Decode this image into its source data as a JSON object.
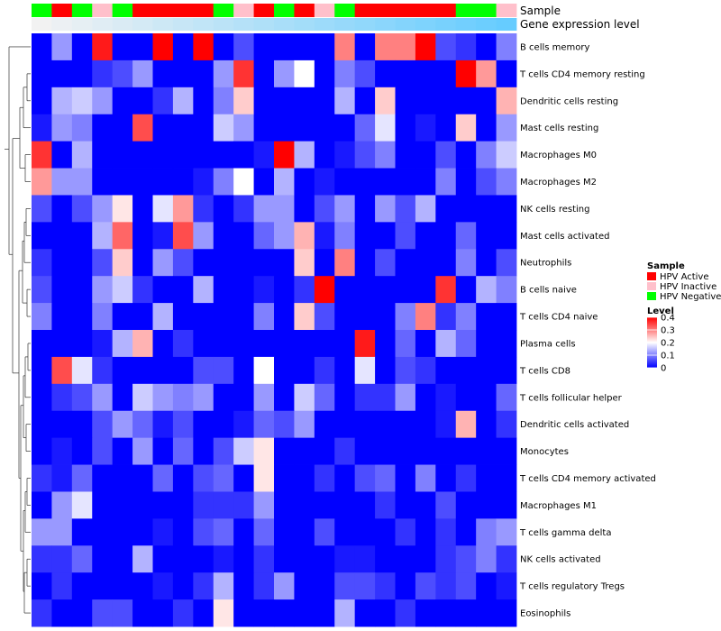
{
  "chart_data": {
    "type": "heatmap",
    "title": "",
    "annotation_labels": {
      "sample": "Sample",
      "gene_expression": "Gene expression level"
    },
    "sample_annotation": [
      "HPV Negative",
      "HPV Active",
      "HPV Negative",
      "HPV Inactive",
      "HPV Negative",
      "HPV Active",
      "HPV Active",
      "HPV Active",
      "HPV Active",
      "HPV Negative",
      "HPV Inactive",
      "HPV Active",
      "HPV Negative",
      "HPV Active",
      "HPV Inactive",
      "HPV Negative",
      "HPV Active",
      "HPV Active",
      "HPV Active",
      "HPV Active",
      "HPV Active",
      "HPV Negative",
      "HPV Negative",
      "HPV Inactive"
    ],
    "gene_expression_level": [
      0.02,
      0.04,
      0.06,
      0.08,
      0.1,
      0.12,
      0.14,
      0.16,
      0.18,
      0.2,
      0.22,
      0.24,
      0.26,
      0.28,
      0.3,
      0.32,
      0.34,
      0.36,
      0.38,
      0.4,
      0.42,
      0.44,
      0.46,
      0.48
    ],
    "rows": [
      "B cells memory",
      "T cells CD4 memory resting",
      "Dendritic cells resting",
      "Mast cells resting",
      "Macrophages M0",
      "Macrophages M2",
      "NK cells resting",
      "Mast cells activated",
      "Neutrophils",
      "B cells naive",
      "T cells CD4 naive",
      "Plasma cells",
      "T cells CD8",
      "T cells follicular helper",
      "Dendritic cells activated",
      "Monocytes",
      "T cells CD4 memory activated",
      "Macrophages M1",
      "T cells gamma delta",
      "NK cells activated",
      "T cells regulatory  Tregs",
      "Eosinophils"
    ],
    "values": [
      [
        0.0,
        0.12,
        0.0,
        0.38,
        0.0,
        0.0,
        0.4,
        0.0,
        0.4,
        0.0,
        0.06,
        0.0,
        0.0,
        0.0,
        0.0,
        0.3,
        0.0,
        0.3,
        0.3,
        0.4,
        0.06,
        0.04,
        0.0,
        0.1
      ],
      [
        0.0,
        0.0,
        0.0,
        0.04,
        0.06,
        0.12,
        0.0,
        0.0,
        0.0,
        0.12,
        0.36,
        0.0,
        0.12,
        0.2,
        0.0,
        0.1,
        0.06,
        0.0,
        0.0,
        0.0,
        0.0,
        0.4,
        0.28,
        0.0
      ],
      [
        0.0,
        0.14,
        0.16,
        0.12,
        0.0,
        0.0,
        0.04,
        0.14,
        0.0,
        0.1,
        0.24,
        0.0,
        0.0,
        0.0,
        0.0,
        0.14,
        0.0,
        0.24,
        0.0,
        0.0,
        0.0,
        0.0,
        0.0,
        0.26
      ],
      [
        0.02,
        0.12,
        0.1,
        0.0,
        0.0,
        0.34,
        0.0,
        0.0,
        0.0,
        0.16,
        0.12,
        0.0,
        0.0,
        0.0,
        0.0,
        0.0,
        0.08,
        0.18,
        0.0,
        0.02,
        0.0,
        0.24,
        0.0,
        0.12
      ],
      [
        0.36,
        0.0,
        0.14,
        0.0,
        0.0,
        0.0,
        0.0,
        0.0,
        0.0,
        0.0,
        0.0,
        0.02,
        0.4,
        0.14,
        0.0,
        0.02,
        0.06,
        0.1,
        0.0,
        0.0,
        0.06,
        0.0,
        0.1,
        0.16
      ],
      [
        0.28,
        0.12,
        0.12,
        0.0,
        0.0,
        0.0,
        0.0,
        0.0,
        0.02,
        0.1,
        0.2,
        0.0,
        0.14,
        0.0,
        0.02,
        0.0,
        0.0,
        0.0,
        0.0,
        0.0,
        0.1,
        0.0,
        0.06,
        0.1
      ],
      [
        0.06,
        0.0,
        0.06,
        0.12,
        0.22,
        0.0,
        0.18,
        0.28,
        0.04,
        0.0,
        0.04,
        0.12,
        0.12,
        0.0,
        0.06,
        0.12,
        0.0,
        0.12,
        0.06,
        0.14,
        0.0,
        0.0,
        0.0,
        0.0
      ],
      [
        0.0,
        0.0,
        0.0,
        0.14,
        0.32,
        0.0,
        0.02,
        0.34,
        0.12,
        0.0,
        0.0,
        0.08,
        0.12,
        0.26,
        0.02,
        0.1,
        0.0,
        0.0,
        0.06,
        0.0,
        0.0,
        0.08,
        0.0,
        0.0
      ],
      [
        0.04,
        0.0,
        0.0,
        0.06,
        0.24,
        0.0,
        0.12,
        0.06,
        0.0,
        0.0,
        0.0,
        0.0,
        0.0,
        0.24,
        0.0,
        0.3,
        0.0,
        0.06,
        0.0,
        0.0,
        0.0,
        0.1,
        0.0,
        0.06
      ],
      [
        0.06,
        0.0,
        0.0,
        0.12,
        0.16,
        0.04,
        0.0,
        0.0,
        0.14,
        0.0,
        0.0,
        0.02,
        0.0,
        0.04,
        0.4,
        0.0,
        0.0,
        0.0,
        0.0,
        0.0,
        0.36,
        0.0,
        0.14,
        0.1
      ],
      [
        0.1,
        0.0,
        0.0,
        0.1,
        0.0,
        0.0,
        0.14,
        0.0,
        0.0,
        0.0,
        0.0,
        0.1,
        0.0,
        0.24,
        0.06,
        0.0,
        0.0,
        0.0,
        0.1,
        0.3,
        0.04,
        0.1,
        0.0,
        0.0
      ],
      [
        0.0,
        0.0,
        0.0,
        0.02,
        0.14,
        0.26,
        0.0,
        0.04,
        0.0,
        0.0,
        0.0,
        0.0,
        0.0,
        0.0,
        0.0,
        0.0,
        0.38,
        0.0,
        0.08,
        0.0,
        0.14,
        0.08,
        0.0,
        0.0
      ],
      [
        0.0,
        0.34,
        0.18,
        0.04,
        0.0,
        0.0,
        0.0,
        0.0,
        0.06,
        0.06,
        0.0,
        0.2,
        0.0,
        0.0,
        0.04,
        0.0,
        0.18,
        0.0,
        0.06,
        0.04,
        0.0,
        0.0,
        0.0,
        0.0
      ],
      [
        0.0,
        0.04,
        0.06,
        0.12,
        0.0,
        0.16,
        0.12,
        0.1,
        0.12,
        0.0,
        0.0,
        0.12,
        0.0,
        0.16,
        0.08,
        0.0,
        0.04,
        0.04,
        0.12,
        0.0,
        0.02,
        0.0,
        0.0,
        0.08
      ],
      [
        0.0,
        0.0,
        0.0,
        0.06,
        0.12,
        0.08,
        0.02,
        0.06,
        0.0,
        0.0,
        0.02,
        0.08,
        0.06,
        0.12,
        0.0,
        0.0,
        0.0,
        0.0,
        0.0,
        0.0,
        0.02,
        0.26,
        0.0,
        0.04
      ],
      [
        0.0,
        0.02,
        0.0,
        0.06,
        0.0,
        0.12,
        0.0,
        0.08,
        0.0,
        0.06,
        0.16,
        0.22,
        0.0,
        0.0,
        0.0,
        0.04,
        0.0,
        0.0,
        0.0,
        0.0,
        0.0,
        0.0,
        0.0,
        0.0
      ],
      [
        0.04,
        0.02,
        0.08,
        0.0,
        0.0,
        0.0,
        0.08,
        0.0,
        0.06,
        0.08,
        0.0,
        0.22,
        0.0,
        0.0,
        0.04,
        0.0,
        0.06,
        0.08,
        0.0,
        0.1,
        0.0,
        0.04,
        0.0,
        0.0
      ],
      [
        0.0,
        0.12,
        0.18,
        0.0,
        0.0,
        0.0,
        0.0,
        0.0,
        0.04,
        0.04,
        0.04,
        0.12,
        0.0,
        0.0,
        0.0,
        0.0,
        0.0,
        0.04,
        0.0,
        0.0,
        0.06,
        0.0,
        0.0,
        0.0
      ],
      [
        0.12,
        0.12,
        0.0,
        0.0,
        0.0,
        0.0,
        0.02,
        0.0,
        0.06,
        0.08,
        0.0,
        0.08,
        0.0,
        0.0,
        0.06,
        0.0,
        0.0,
        0.0,
        0.04,
        0.0,
        0.04,
        0.0,
        0.1,
        0.12
      ],
      [
        0.04,
        0.04,
        0.08,
        0.0,
        0.0,
        0.14,
        0.0,
        0.0,
        0.0,
        0.02,
        0.0,
        0.04,
        0.0,
        0.0,
        0.0,
        0.02,
        0.02,
        0.0,
        0.0,
        0.0,
        0.04,
        0.06,
        0.1,
        0.04
      ],
      [
        0.0,
        0.04,
        0.0,
        0.0,
        0.0,
        0.0,
        0.02,
        0.0,
        0.04,
        0.14,
        0.0,
        0.04,
        0.12,
        0.0,
        0.0,
        0.06,
        0.06,
        0.04,
        0.0,
        0.06,
        0.04,
        0.06,
        0.0,
        0.02
      ],
      [
        0.04,
        0.0,
        0.0,
        0.06,
        0.06,
        0.0,
        0.0,
        0.04,
        0.0,
        0.22,
        0.0,
        0.0,
        0.0,
        0.0,
        0.0,
        0.14,
        0.0,
        0.0,
        0.04,
        0.0,
        0.0,
        0.0,
        0.0,
        0.0
      ]
    ],
    "legend": {
      "sample": {
        "title": "Sample",
        "entries": [
          {
            "label": "HPV Active",
            "color": "#FF0000"
          },
          {
            "label": "HPV Inactive",
            "color": "#FFC0CB"
          },
          {
            "label": "HPV Negative",
            "color": "#00FF00"
          }
        ]
      },
      "level": {
        "title": "Level",
        "ticks": [
          0.4,
          0.3,
          0.2,
          0.1,
          0
        ],
        "tick_labels": [
          "0.4",
          "0.3",
          "0.2",
          "0.1",
          "0"
        ],
        "range": [
          0,
          0.4
        ]
      }
    },
    "colors": {
      "low": "#0000FF",
      "mid": "#FFFFFF",
      "high": "#FF0000",
      "gene_low": "#F2F2F2",
      "gene_high": "#66CCFF"
    }
  }
}
